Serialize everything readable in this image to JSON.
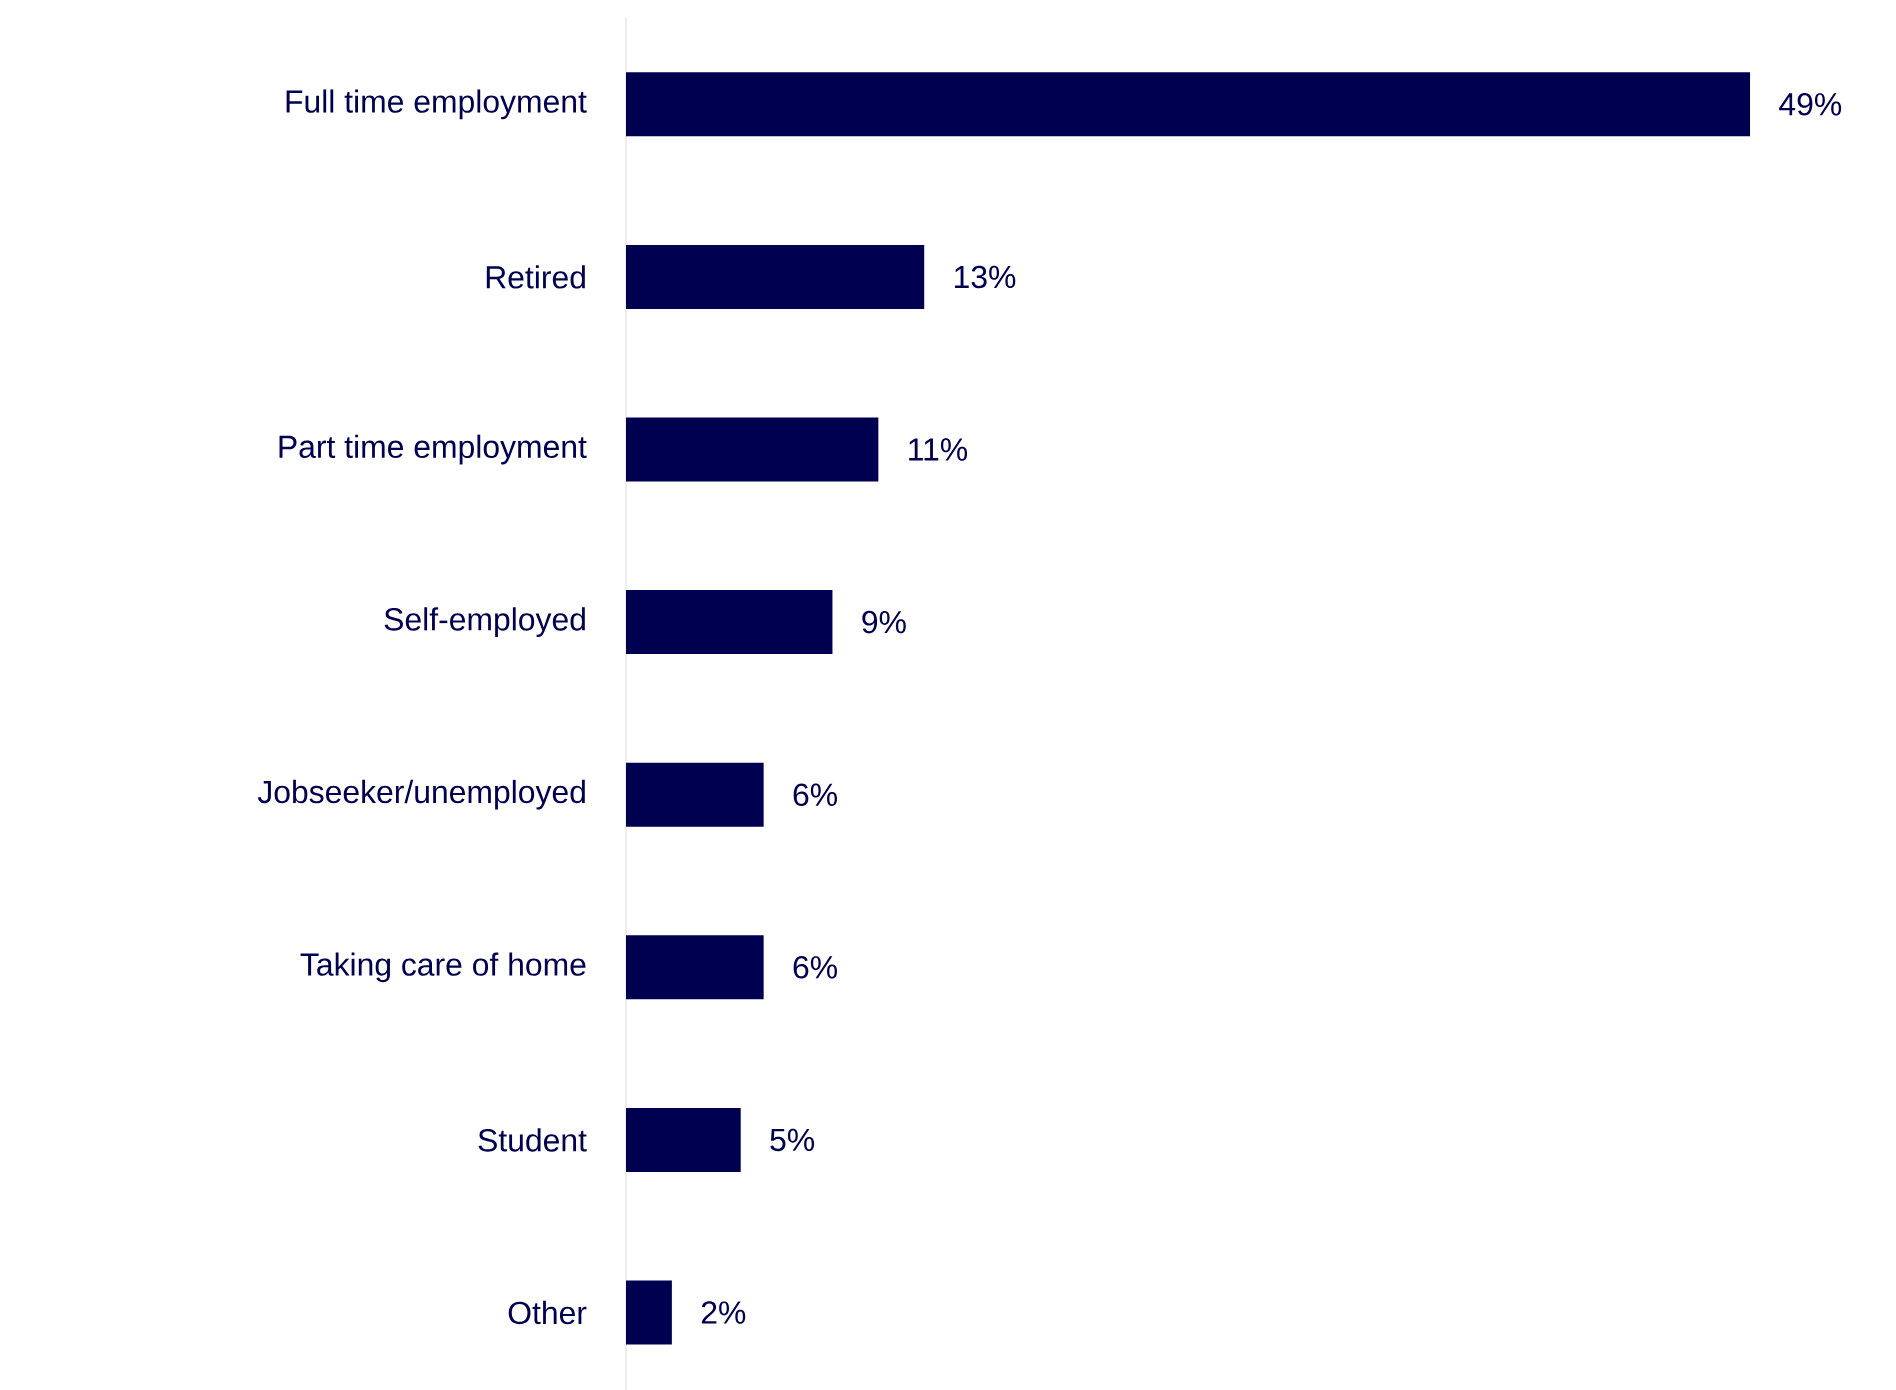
{
  "chart_data": {
    "type": "bar",
    "orientation": "horizontal",
    "categories": [
      "Full time employment",
      "Retired",
      "Part time employment",
      "Self-employed",
      "Jobseeker/unemployed",
      "Taking care of home",
      "Student",
      "Other"
    ],
    "values": [
      49,
      13,
      11,
      9,
      6,
      6,
      5,
      2
    ],
    "value_labels": [
      "49%",
      "13%",
      "11%",
      "9%",
      "6%",
      "6%",
      "5%",
      "2%"
    ],
    "color": "#000050"
  }
}
